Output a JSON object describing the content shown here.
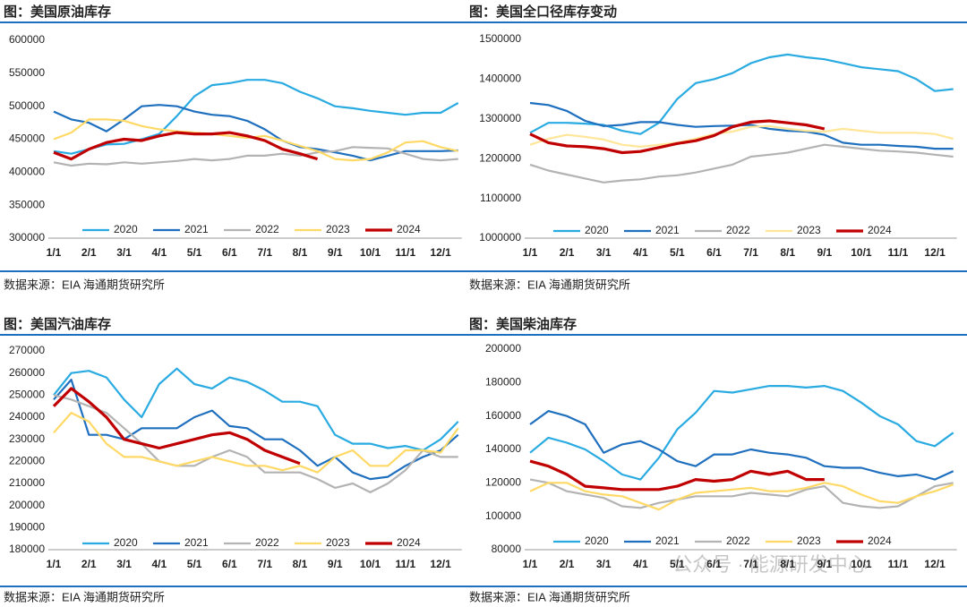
{
  "chart_data": [
    {
      "type": "line",
      "title": "图：美国原油库存",
      "source": "数据来源：EIA   海通期货研究所",
      "categories": [
        "1/1",
        null,
        "2/1",
        null,
        "3/1",
        null,
        "4/1",
        null,
        "5/1",
        null,
        "6/1",
        null,
        "7/1",
        null,
        "8/1",
        null,
        "9/1",
        null,
        "10/1",
        null,
        "11/1",
        null,
        "12/1",
        null
      ],
      "ylim": [
        300000,
        600000
      ],
      "yticks": [
        300000,
        350000,
        400000,
        450000,
        500000,
        550000,
        600000
      ],
      "legend": "bottom",
      "series": [
        {
          "name": "2020",
          "color": "#29abe2",
          "values": [
            432000,
            428000,
            435000,
            442000,
            443000,
            450000,
            458000,
            485000,
            515000,
            532000,
            535000,
            540000,
            540000,
            535000,
            522000,
            512000,
            500000,
            497000,
            493000,
            490000,
            487000,
            490000,
            490000,
            505000
          ]
        },
        {
          "name": "2021",
          "color": "#1f6fbf",
          "values": [
            492000,
            480000,
            475000,
            462000,
            480000,
            500000,
            502000,
            500000,
            492000,
            487000,
            485000,
            478000,
            465000,
            448000,
            438000,
            435000,
            430000,
            425000,
            418000,
            425000,
            432000,
            432000,
            432000,
            433000
          ]
        },
        {
          "name": "2022",
          "color": "#b3b3b3",
          "values": [
            415000,
            410000,
            413000,
            412000,
            415000,
            413000,
            415000,
            417000,
            420000,
            418000,
            420000,
            425000,
            425000,
            428000,
            425000,
            430000,
            432000,
            438000,
            437000,
            436000,
            428000,
            420000,
            418000,
            420000
          ]
        },
        {
          "name": "2023",
          "color": "#ffd966",
          "values": [
            450000,
            460000,
            480000,
            480000,
            478000,
            470000,
            465000,
            462000,
            460000,
            458000,
            455000,
            452000,
            455000,
            448000,
            440000,
            432000,
            420000,
            418000,
            420000,
            430000,
            445000,
            447000,
            438000,
            432000
          ]
        },
        {
          "name": "2024",
          "color": "#c00000",
          "values": [
            430000,
            420000,
            435000,
            445000,
            450000,
            448000,
            455000,
            460000,
            458000,
            458000,
            460000,
            455000,
            448000,
            435000,
            428000,
            420000,
            null,
            null,
            null,
            null,
            null,
            null,
            null,
            null
          ]
        }
      ]
    },
    {
      "type": "line",
      "title": "图：美国全口径库存变动",
      "source": "数据来源：EIA   海通期货研究所",
      "categories": [
        "1/1",
        null,
        "2/1",
        null,
        "3/1",
        null,
        "4/1",
        null,
        "5/1",
        null,
        "6/1",
        null,
        "7/1",
        null,
        "8/1",
        null,
        "9/1",
        null,
        "10/1",
        null,
        "11/1",
        null,
        "12/1",
        null
      ],
      "ylim": [
        1000000,
        1500000
      ],
      "yticks": [
        1000000,
        1100000,
        1200000,
        1300000,
        1400000,
        1500000
      ],
      "legend": "bottom",
      "series": [
        {
          "name": "2020",
          "color": "#29abe2",
          "values": [
            1265000,
            1290000,
            1290000,
            1288000,
            1285000,
            1270000,
            1262000,
            1290000,
            1350000,
            1390000,
            1400000,
            1415000,
            1440000,
            1455000,
            1462000,
            1455000,
            1450000,
            1440000,
            1430000,
            1425000,
            1420000,
            1400000,
            1370000,
            1375000
          ]
        },
        {
          "name": "2021",
          "color": "#1f6fbf",
          "values": [
            1340000,
            1335000,
            1320000,
            1295000,
            1282000,
            1285000,
            1292000,
            1292000,
            1285000,
            1280000,
            1282000,
            1283000,
            1285000,
            1275000,
            1270000,
            1268000,
            1260000,
            1240000,
            1235000,
            1235000,
            1232000,
            1230000,
            1225000,
            1225000
          ]
        },
        {
          "name": "2022",
          "color": "#b3b3b3",
          "values": [
            1185000,
            1170000,
            1160000,
            1150000,
            1140000,
            1145000,
            1148000,
            1155000,
            1158000,
            1165000,
            1175000,
            1185000,
            1205000,
            1210000,
            1215000,
            1225000,
            1235000,
            1230000,
            1225000,
            1220000,
            1218000,
            1215000,
            1210000,
            1205000
          ]
        },
        {
          "name": "2023",
          "color": "#ffe699",
          "values": [
            1235000,
            1250000,
            1260000,
            1255000,
            1248000,
            1235000,
            1230000,
            1235000,
            1240000,
            1250000,
            1262000,
            1268000,
            1280000,
            1282000,
            1275000,
            1270000,
            1268000,
            1275000,
            1270000,
            1265000,
            1265000,
            1265000,
            1262000,
            1250000
          ]
        },
        {
          "name": "2024",
          "color": "#c00000",
          "values": [
            1262000,
            1240000,
            1232000,
            1230000,
            1225000,
            1215000,
            1218000,
            1228000,
            1238000,
            1245000,
            1258000,
            1280000,
            1292000,
            1295000,
            1290000,
            1285000,
            1275000,
            null,
            null,
            null,
            null,
            null,
            null,
            null
          ]
        }
      ]
    },
    {
      "type": "line",
      "title": "图：美国汽油库存",
      "source": "数据来源：EIA   海通期货研究所",
      "categories": [
        "1/1",
        null,
        "2/1",
        null,
        "3/1",
        null,
        "4/1",
        null,
        "5/1",
        null,
        "6/1",
        null,
        "7/1",
        null,
        "8/1",
        null,
        "9/1",
        null,
        "10/1",
        null,
        "11/1",
        null,
        "12/1",
        null
      ],
      "ylim": [
        180000,
        270000
      ],
      "yticks": [
        180000,
        190000,
        200000,
        210000,
        220000,
        230000,
        240000,
        250000,
        260000,
        270000
      ],
      "legend": "bottom",
      "series": [
        {
          "name": "2020",
          "color": "#29abe2",
          "values": [
            250000,
            260000,
            261000,
            258000,
            248000,
            240000,
            255000,
            262000,
            255000,
            253000,
            258000,
            256000,
            252000,
            247000,
            247000,
            245000,
            232000,
            228000,
            228000,
            226000,
            227000,
            225000,
            230000,
            238000
          ]
        },
        {
          "name": "2021",
          "color": "#1f6fbf",
          "values": [
            248000,
            257000,
            232000,
            232000,
            230000,
            235000,
            235000,
            235000,
            240000,
            243000,
            236000,
            235000,
            230000,
            230000,
            225000,
            218000,
            222000,
            215000,
            212000,
            213000,
            218000,
            222000,
            225000,
            232000
          ]
        },
        {
          "name": "2022",
          "color": "#b3b3b3",
          "values": [
            250000,
            248000,
            245000,
            242000,
            235000,
            228000,
            220000,
            218000,
            218000,
            222000,
            225000,
            222000,
            215000,
            215000,
            215000,
            212000,
            208000,
            210000,
            206000,
            210000,
            216000,
            225000,
            222000,
            222000
          ]
        },
        {
          "name": "2023",
          "color": "#ffd966",
          "values": [
            233000,
            242000,
            238000,
            228000,
            222000,
            222000,
            220000,
            218000,
            220000,
            222000,
            220000,
            218000,
            218000,
            216000,
            218000,
            215000,
            222000,
            225000,
            218000,
            218000,
            225000,
            225000,
            224000,
            235000
          ]
        },
        {
          "name": "2024",
          "color": "#c00000",
          "values": [
            245000,
            253000,
            247000,
            240000,
            230000,
            228000,
            226000,
            228000,
            230000,
            232000,
            233000,
            230000,
            225000,
            222000,
            219000,
            null,
            null,
            null,
            null,
            null,
            null,
            null,
            null,
            null
          ]
        }
      ]
    },
    {
      "type": "line",
      "title": "图：美国柴油库存",
      "source": "数据来源：EIA   海通期货研究所",
      "categories": [
        "1/1",
        null,
        "2/1",
        null,
        "3/1",
        null,
        "4/1",
        null,
        "5/1",
        null,
        "6/1",
        null,
        "7/1",
        null,
        "8/1",
        null,
        "9/1",
        null,
        "10/1",
        null,
        "11/1",
        null,
        "12/1",
        null
      ],
      "ylim": [
        80000,
        200000
      ],
      "yticks": [
        80000,
        100000,
        120000,
        140000,
        160000,
        180000,
        200000
      ],
      "legend": "bottom",
      "series": [
        {
          "name": "2020",
          "color": "#29abe2",
          "values": [
            138000,
            147000,
            144000,
            140000,
            133000,
            125000,
            122000,
            135000,
            152000,
            162000,
            175000,
            174000,
            176000,
            178000,
            178000,
            177000,
            178000,
            175000,
            168000,
            160000,
            155000,
            145000,
            142000,
            150000
          ]
        },
        {
          "name": "2021",
          "color": "#1f6fbf",
          "values": [
            155000,
            163000,
            160000,
            155000,
            138000,
            143000,
            145000,
            140000,
            133000,
            130000,
            137000,
            137000,
            140000,
            138000,
            137000,
            135000,
            130000,
            129000,
            129000,
            126000,
            124000,
            125000,
            122000,
            127000
          ]
        },
        {
          "name": "2022",
          "color": "#b3b3b3",
          "values": [
            122000,
            120000,
            115000,
            113000,
            111000,
            106000,
            105000,
            108000,
            110000,
            112000,
            112000,
            112000,
            114000,
            113000,
            112000,
            116000,
            118000,
            108000,
            106000,
            105000,
            106000,
            112000,
            118000,
            120000
          ]
        },
        {
          "name": "2023",
          "color": "#ffd966",
          "values": [
            115000,
            120000,
            120000,
            115000,
            113000,
            112000,
            108000,
            104000,
            110000,
            114000,
            115000,
            116000,
            117000,
            115000,
            115000,
            117000,
            120000,
            118000,
            113000,
            109000,
            108000,
            112000,
            115000,
            119000
          ]
        },
        {
          "name": "2024",
          "color": "#c00000",
          "values": [
            133000,
            130000,
            125000,
            118000,
            117000,
            116000,
            116000,
            116000,
            118000,
            122000,
            121000,
            122000,
            127000,
            125000,
            127000,
            122000,
            122000,
            null,
            null,
            null,
            null,
            null,
            null,
            null
          ]
        }
      ]
    }
  ],
  "watermark": "公众号 · 能源研发中心"
}
